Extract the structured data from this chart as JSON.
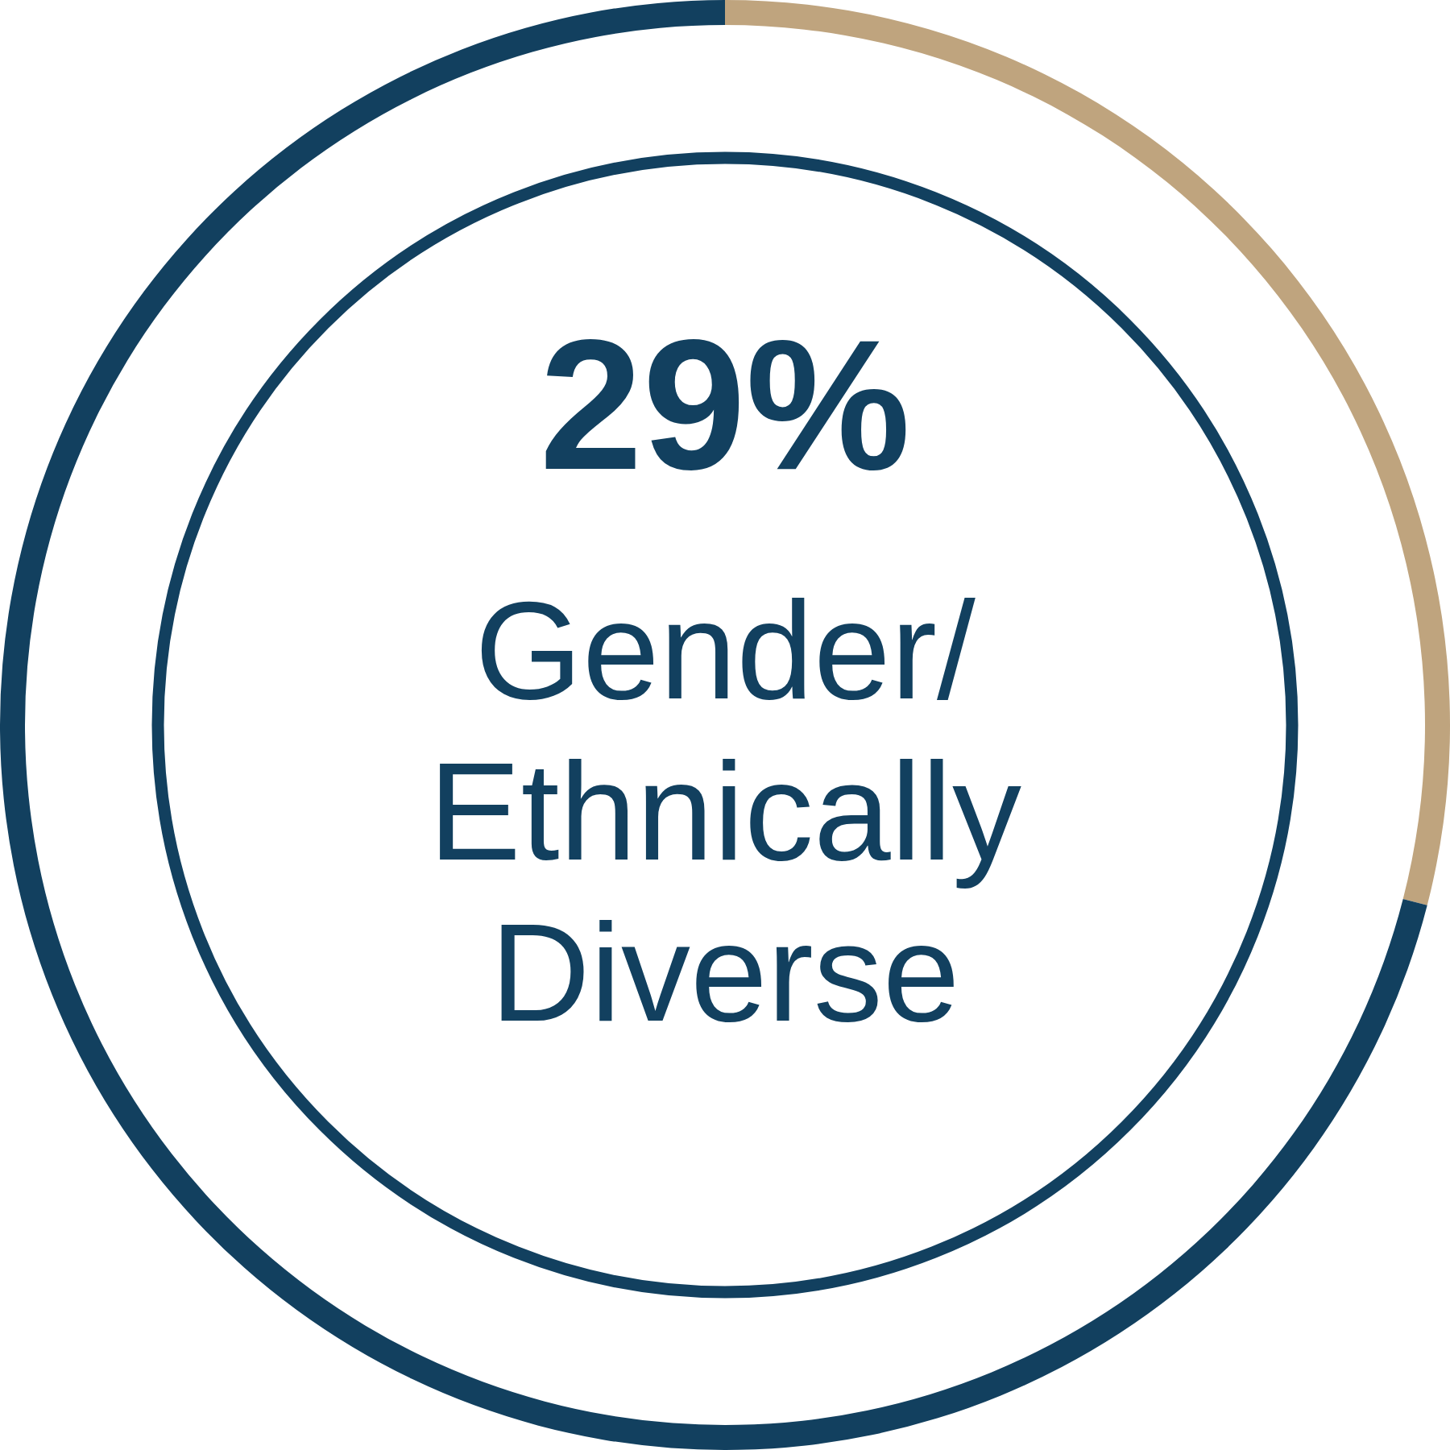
{
  "chart_data": {
    "type": "donut",
    "categories": [
      "Gender/ Ethnically Diverse",
      null
    ],
    "values": [
      29,
      71
    ],
    "colors": [
      "#bfa47e",
      "#12405f"
    ],
    "value_labels": [
      "29%",
      null
    ]
  }
}
